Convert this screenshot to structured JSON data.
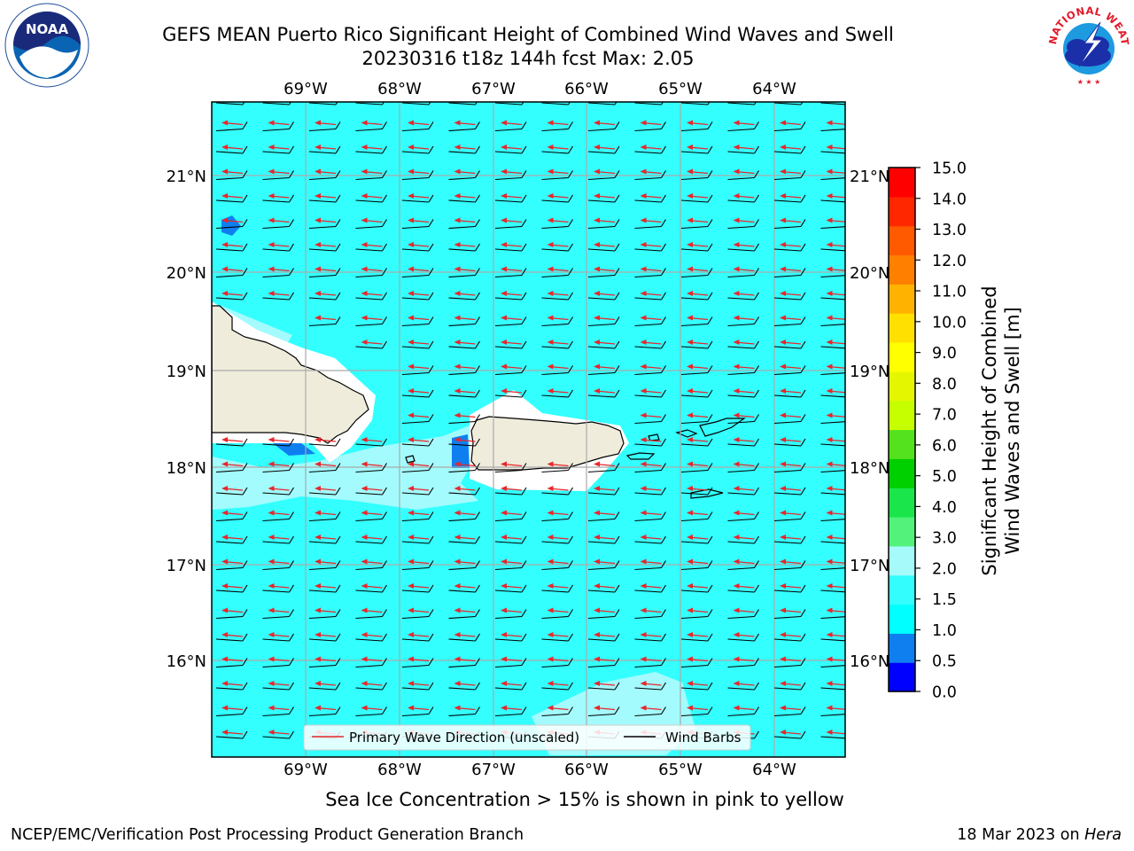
{
  "title": {
    "line1": "GEFS MEAN Puerto Rico Significant Height of Combined Wind Waves and Swell",
    "line2": "20230316 t18z 144h fcst   Max: 2.05"
  },
  "map": {
    "lon_labels": [
      "69°W",
      "68°W",
      "67°W",
      "66°W",
      "65°W",
      "64°W"
    ],
    "lat_labels": [
      "21°N",
      "20°N",
      "19°N",
      "18°N",
      "17°N",
      "16°N"
    ],
    "legend": {
      "wave_label": "Primary Wave Direction (unscaled)",
      "barb_label": "Wind Barbs"
    },
    "colors": {
      "ocean_fill": "#33ffff",
      "ocean_light": "#a3fbfd",
      "land": "#efecdc",
      "wave_arrow": "#e8262a",
      "barb": "#000000",
      "grid": "#aaaaaa"
    }
  },
  "colorbar": {
    "title_line1": "Significant Height of Combined",
    "title_line2": "Wind Waves and Swell [m]",
    "tick_labels": [
      "0.0",
      "0.5",
      "1.0",
      "1.5",
      "2.0",
      "3.0",
      "4.0",
      "5.0",
      "6.0",
      "7.0",
      "8.0",
      "9.0",
      "10.0",
      "11.0",
      "12.0",
      "13.0",
      "14.0",
      "15.0"
    ],
    "colors": [
      "#0000ff",
      "#0f7ff0",
      "#00ffff",
      "#33fdfd",
      "#a6fbfa",
      "#52f27b",
      "#1ae64c",
      "#00d000",
      "#53e21d",
      "#c6ff00",
      "#e4f700",
      "#ffff00",
      "#ffe000",
      "#ffb300",
      "#ff8000",
      "#ff5a00",
      "#ff2700",
      "#ff0000"
    ]
  },
  "subtitle": "Sea Ice Concentration > 15% is shown in pink to yellow",
  "footer": {
    "left": "NCEP/EMC/Verification Post Processing Product Generation Branch",
    "right_date": "18 Mar 2023 on ",
    "right_machine": "Hera"
  },
  "logos": {
    "noaa_text": "NOAA",
    "nws_text": "NATIONAL WEATHER SERVICE"
  }
}
